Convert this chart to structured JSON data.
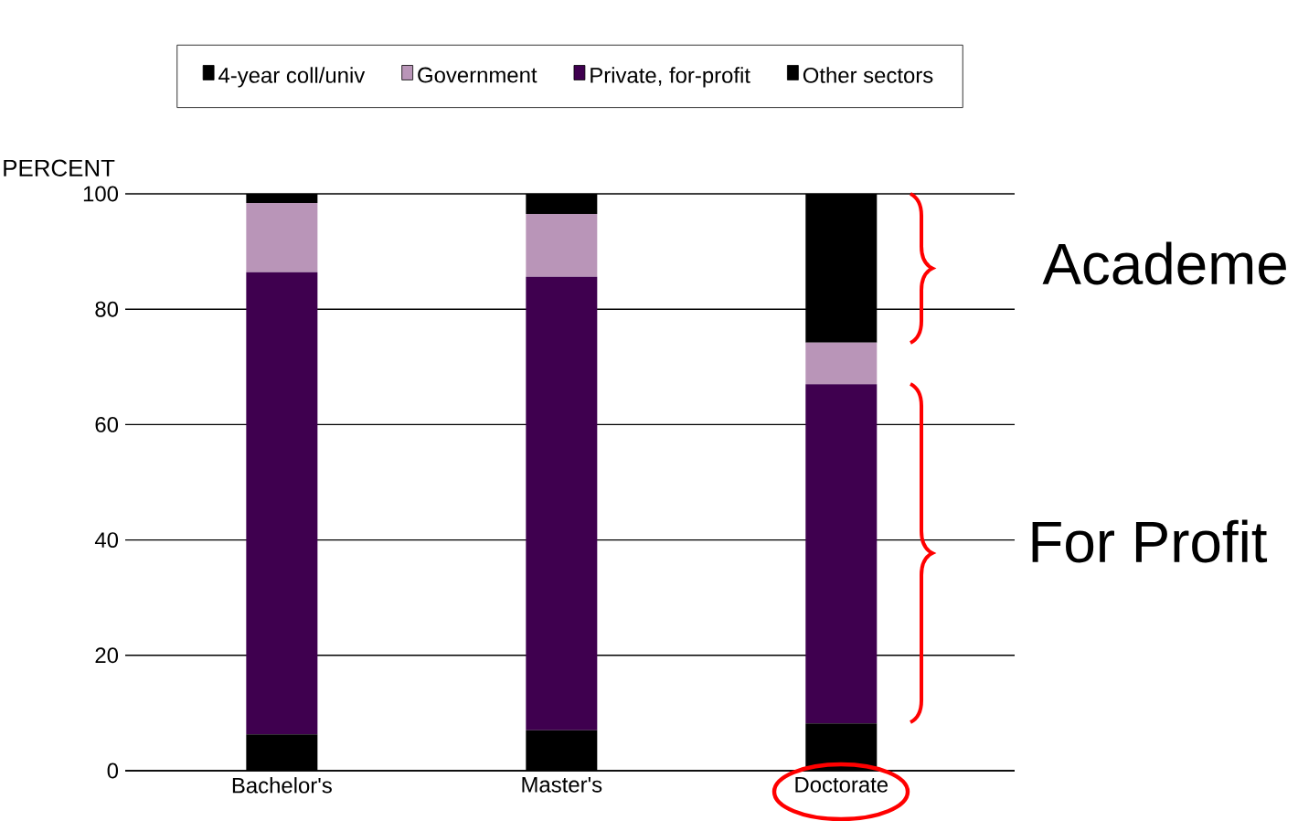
{
  "chart_data": {
    "type": "bar",
    "stacked": true,
    "ylabel": "PERCENT",
    "categories": [
      "Bachelor's",
      "Master's",
      "Doctorate"
    ],
    "series": [
      {
        "name": "Other sectors",
        "color": "#000000",
        "values": [
          6.3,
          7.0,
          8.2
        ]
      },
      {
        "name": "Private, for-profit",
        "color": "#3f004f",
        "values": [
          80.1,
          78.6,
          58.8
        ]
      },
      {
        "name": "Government",
        "color": "#b995b8",
        "values": [
          12.0,
          10.9,
          7.2
        ]
      },
      {
        "name": "4-year coll/univ",
        "color": "#000000",
        "values": [
          1.6,
          3.5,
          25.8
        ]
      }
    ],
    "ylim": [
      0,
      100
    ],
    "yticks": [
      0,
      20,
      40,
      60,
      80,
      100
    ],
    "grid": "y",
    "legend": "top",
    "annotations": [
      "Academe",
      "For Profit"
    ]
  }
}
